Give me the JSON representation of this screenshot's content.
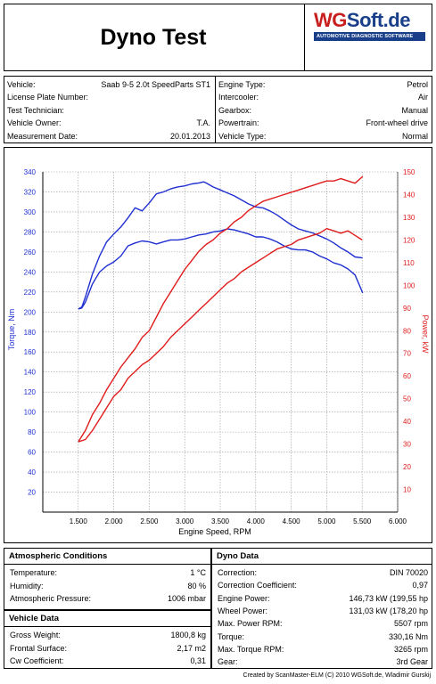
{
  "header": {
    "title": "Dyno Test",
    "logo_main_a": "WG",
    "logo_main_b": "Soft.de",
    "logo_sub": "AUTOMOTIVE DIAGNOSTIC SOFTWARE"
  },
  "vehicle_info": {
    "left": [
      {
        "label": "Vehicle:",
        "value": "Saab 9-5 2.0t SpeedParts ST1"
      },
      {
        "label": "License Plate Number:",
        "value": ""
      },
      {
        "label": "Test Technician:",
        "value": ""
      },
      {
        "label": "Vehicle Owner:",
        "value": "T.A."
      },
      {
        "label": "Measurement Date:",
        "value": "20.01.2013"
      }
    ],
    "right": [
      {
        "label": "Engine Type:",
        "value": "Petrol"
      },
      {
        "label": "Intercooler:",
        "value": "Air"
      },
      {
        "label": "Gearbox:",
        "value": "Manual"
      },
      {
        "label": "Powertrain:",
        "value": "Front-wheel drive"
      },
      {
        "label": "Vehicle Type:",
        "value": "Normal"
      }
    ]
  },
  "atmospheric": {
    "title": "Atmospheric Conditions",
    "rows": [
      {
        "label": "Temperature:",
        "value": "1 °C"
      },
      {
        "label": "Humidity:",
        "value": "80 %"
      },
      {
        "label": "Atmospheric Pressure:",
        "value": "1006 mbar"
      }
    ]
  },
  "vehicle_data": {
    "title": "Vehicle Data",
    "rows": [
      {
        "label": "Gross Weight:",
        "value": "1800,8 kg"
      },
      {
        "label": "Frontal Surface:",
        "value": "2,17 m2"
      },
      {
        "label": "Cw Coefficient:",
        "value": "0,31"
      }
    ]
  },
  "dyno_data": {
    "title": "Dyno Data",
    "rows": [
      {
        "label": "Correction:",
        "value": "DIN 70020"
      },
      {
        "label": "Correction Coefficient:",
        "value": "0,97"
      },
      {
        "label": "Engine Power:",
        "value": "146,73 kW (199,55 hp"
      },
      {
        "label": "Wheel Power:",
        "value": "131,03 kW (178,20 hp"
      },
      {
        "label": "Max. Power RPM:",
        "value": "5507 rpm"
      },
      {
        "label": "Torque:",
        "value": "330,16 Nm"
      },
      {
        "label": "Max. Torque RPM:",
        "value": "3265 rpm"
      },
      {
        "label": "Gear:",
        "value": "3rd Gear"
      }
    ]
  },
  "footer": "Created by ScanMaster-ELM (C) 2010 WGSoft.de, Wladimir Gurskij",
  "colors": {
    "torque": "#1f2fd0",
    "power": "#e01b1b",
    "grid": "#9a9a9a"
  },
  "chart_data": {
    "type": "line",
    "xlabel": "Engine Speed, RPM",
    "ylabel": "Torque, Nm",
    "y2label": "Power, kW",
    "xlim": [
      1000,
      6000
    ],
    "ylim": [
      0,
      340
    ],
    "y2lim": [
      0,
      150
    ],
    "xticks": [
      1500,
      2000,
      2500,
      3000,
      3500,
      4000,
      4500,
      5000,
      5500,
      6000
    ],
    "xtick_labels": [
      "1.500",
      "2.000",
      "2.500",
      "3.000",
      "3.500",
      "4.000",
      "4.500",
      "5.000",
      "5.500",
      "6.000"
    ],
    "yticks": [
      0,
      20,
      40,
      60,
      80,
      100,
      120,
      140,
      160,
      180,
      200,
      220,
      240,
      260,
      280,
      300,
      320,
      340
    ],
    "y2ticks": [
      0,
      10,
      20,
      30,
      40,
      50,
      60,
      70,
      80,
      90,
      100,
      110,
      120,
      130,
      140,
      150
    ],
    "grid": true,
    "series": [
      {
        "axis": "left",
        "color": "#1f2fd0",
        "x": [
          1500,
          1550,
          1600,
          1700,
          1800,
          1900,
          2000,
          2100,
          2200,
          2300,
          2400,
          2500,
          2600,
          2700,
          2800,
          2900,
          3000,
          3100,
          3200,
          3265,
          3300,
          3400,
          3500,
          3600,
          3700,
          3800,
          3900,
          4000,
          4100,
          4200,
          4300,
          4400,
          4500,
          4600,
          4700,
          4800,
          4900,
          5000,
          5100,
          5200,
          5300,
          5400,
          5507
        ],
        "y": [
          203,
          205,
          215,
          238,
          256,
          270,
          278,
          285,
          294,
          304,
          301,
          309,
          318,
          320,
          323,
          325,
          326,
          328,
          329,
          330,
          329,
          325,
          322,
          319,
          316,
          312,
          308,
          305,
          304,
          301,
          297,
          292,
          287,
          283,
          281,
          279,
          276,
          273,
          269,
          264,
          260,
          255,
          254
        ]
      },
      {
        "axis": "left",
        "color": "#1f2fd0",
        "x": [
          1500,
          1550,
          1600,
          1700,
          1800,
          1900,
          2000,
          2100,
          2200,
          2300,
          2400,
          2500,
          2600,
          2700,
          2800,
          2900,
          3000,
          3100,
          3200,
          3300,
          3400,
          3500,
          3600,
          3700,
          3800,
          3900,
          4000,
          4100,
          4200,
          4300,
          4400,
          4500,
          4600,
          4700,
          4800,
          4900,
          5000,
          5100,
          5200,
          5300,
          5400,
          5507
        ],
        "y": [
          203,
          204,
          210,
          228,
          240,
          246,
          250,
          256,
          266,
          269,
          271,
          270,
          268,
          270,
          272,
          272,
          273,
          275,
          277,
          278,
          280,
          281,
          283,
          282,
          280,
          278,
          275,
          275,
          273,
          270,
          266,
          263,
          262,
          262,
          260,
          256,
          253,
          249,
          247,
          243,
          237,
          219
        ]
      },
      {
        "axis": "right",
        "color": "#e01b1b",
        "x": [
          1500,
          1600,
          1700,
          1800,
          1900,
          2000,
          2100,
          2200,
          2300,
          2400,
          2500,
          2600,
          2700,
          2800,
          2900,
          3000,
          3100,
          3200,
          3300,
          3400,
          3500,
          3600,
          3700,
          3800,
          3900,
          4000,
          4100,
          4200,
          4300,
          4400,
          4500,
          4600,
          4700,
          4800,
          4900,
          5000,
          5100,
          5200,
          5300,
          5400,
          5507
        ],
        "y": [
          31,
          36,
          43,
          48,
          54,
          59,
          64,
          68,
          72,
          77,
          80,
          86,
          92,
          97,
          102,
          107,
          111,
          115,
          118,
          120,
          123,
          125,
          128,
          130,
          133,
          135,
          137,
          138,
          139,
          140,
          141,
          142,
          143,
          144,
          145,
          146,
          146,
          147,
          146,
          145,
          148
        ]
      },
      {
        "axis": "right",
        "color": "#e01b1b",
        "x": [
          1500,
          1600,
          1700,
          1800,
          1900,
          2000,
          2100,
          2200,
          2300,
          2400,
          2500,
          2600,
          2700,
          2800,
          2900,
          3000,
          3100,
          3200,
          3300,
          3400,
          3500,
          3600,
          3700,
          3800,
          3900,
          4000,
          4100,
          4200,
          4300,
          4400,
          4500,
          4600,
          4700,
          4800,
          4900,
          5000,
          5100,
          5200,
          5300,
          5400,
          5500
        ],
        "y": [
          31,
          32,
          36,
          41,
          46,
          51,
          54,
          59,
          62,
          65,
          67,
          70,
          73,
          77,
          80,
          83,
          86,
          89,
          92,
          95,
          98,
          101,
          103,
          106,
          108,
          110,
          112,
          114,
          116,
          117,
          118,
          120,
          121,
          122,
          123,
          125,
          124,
          123,
          124,
          122,
          120
        ]
      }
    ]
  }
}
